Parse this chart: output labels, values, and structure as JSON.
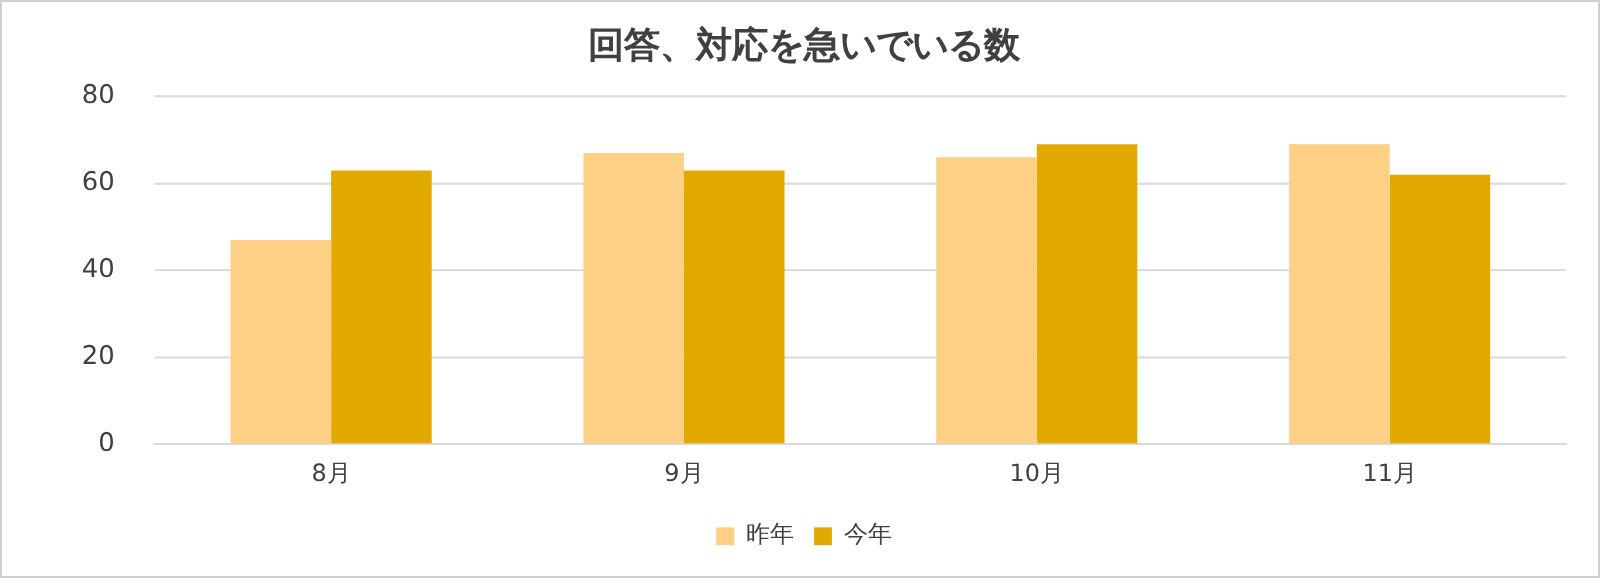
{
  "chart_data": {
    "type": "bar",
    "title": "回答、対応を急いでいる数",
    "categories": [
      "8月",
      "9月",
      "10月",
      "11月"
    ],
    "series": [
      {
        "name": "昨年",
        "color": "#fdd086",
        "values": [
          47,
          67,
          66,
          69
        ]
      },
      {
        "name": "今年",
        "color": "#e2a900",
        "values": [
          63,
          63,
          69,
          62
        ]
      }
    ],
    "ylim": [
      0,
      80
    ],
    "yticks": [
      0,
      20,
      40,
      60,
      80
    ],
    "grid": "y",
    "legend": "bottom"
  }
}
